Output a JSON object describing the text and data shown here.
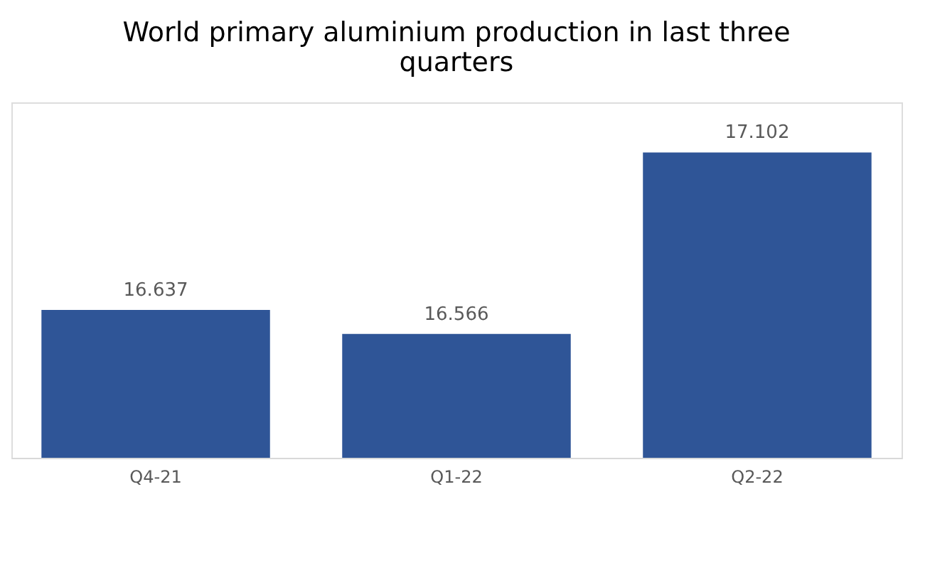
{
  "chart_data": {
    "type": "bar",
    "title": "World primary aluminium production in last three quarters",
    "categories": [
      "Q4-21",
      "Q1-22",
      "Q2-22"
    ],
    "series": [
      {
        "color": "#2f5597",
        "values": [
          16.637,
          16.566,
          17.102
        ]
      }
    ],
    "ylim": [
      16.2,
      17.25
    ],
    "data_labels": true,
    "grid": false
  }
}
